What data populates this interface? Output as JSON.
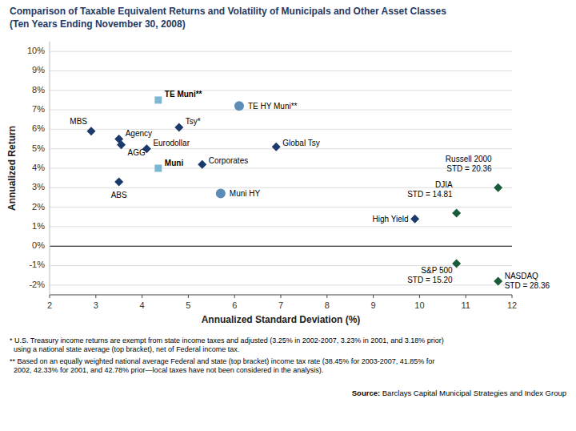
{
  "chart_data": {
    "type": "scatter",
    "title": "Comparison of Taxable Equivalent Returns and Volatility of Municipals and Other Asset Classes",
    "subtitle": "(Ten Years Ending November 30, 2008)",
    "xlabel": "Annualized Standard Deviation (%)",
    "ylabel": "Annualized Return",
    "xlim": [
      2,
      12
    ],
    "ylim": [
      -0.025,
      0.105
    ],
    "xticks": [
      2,
      3,
      4,
      5,
      6,
      7,
      8,
      9,
      10,
      11,
      12
    ],
    "yticks": [
      {
        "value": -0.02,
        "label": "-2%"
      },
      {
        "value": -0.01,
        "label": "-1%"
      },
      {
        "value": 0.0,
        "label": "0%"
      },
      {
        "value": 0.01,
        "label": "1%"
      },
      {
        "value": 0.02,
        "label": "2%"
      },
      {
        "value": 0.03,
        "label": "3%"
      },
      {
        "value": 0.04,
        "label": "4%"
      },
      {
        "value": 0.05,
        "label": "5%"
      },
      {
        "value": 0.06,
        "label": "6%"
      },
      {
        "value": 0.07,
        "label": "7%"
      },
      {
        "value": 0.08,
        "label": "8%"
      },
      {
        "value": 0.09,
        "label": "9%"
      },
      {
        "value": 0.1,
        "label": "10%"
      }
    ],
    "grid": true,
    "series": [
      {
        "color": "#1b3a6b",
        "marker": "diamond",
        "labels": [
          "MBS",
          "Agency",
          "AGG",
          "ABS",
          "Eurodollar",
          "Tsy*",
          "Corporates",
          "Global Tsy",
          "High Yield"
        ],
        "x": [
          2.9,
          3.5,
          3.55,
          3.5,
          4.1,
          4.8,
          5.3,
          6.9,
          9.9
        ],
        "values": [
          0.059,
          0.055,
          0.052,
          0.033,
          0.05,
          0.061,
          0.042,
          0.051,
          0.014
        ]
      },
      {
        "color": "#7ab8d4",
        "marker": "square",
        "labels": [
          "TE Muni**",
          "Muni"
        ],
        "x": [
          4.35,
          4.35
        ],
        "values": [
          0.075,
          0.04
        ]
      },
      {
        "color": "#5b8db8",
        "marker": "circle",
        "labels": [
          "TE HY Muni**",
          "Muni HY"
        ],
        "x": [
          6.1,
          5.7
        ],
        "values": [
          0.072,
          0.027
        ]
      },
      {
        "color": "#1a5c3a",
        "marker": "diamond",
        "labels": [
          "DJIA\nSTD = 14.81",
          "S&P 500\nSTD = 15.20",
          "Russell 2000\nSTD = 20.36",
          "NASDAQ\nSTD = 28.36"
        ],
        "x": [
          10.8,
          10.8,
          11.7,
          11.7
        ],
        "values": [
          0.017,
          -0.009,
          0.03,
          -0.018
        ]
      }
    ],
    "footnotes": [
      "* U.S. Treasury income returns are exempt from state income taxes and adjusted (3.25% in 2002-2007, 3.23% in 2001, and 3.18% prior)",
      "  using a national state average (top bracket), net of Federal income tax.",
      "** Based on an equally weighted national average Federal and state (top bracket) income tax rate (38.45% for 2003-2007, 41.85% for",
      "  2002, 42.33% for 2001, and 42.78% prior—local taxes have not been considered in the analysis)."
    ],
    "source": [
      "Source:",
      " Barclays Capital Municipal Strategies and Index Group"
    ]
  }
}
